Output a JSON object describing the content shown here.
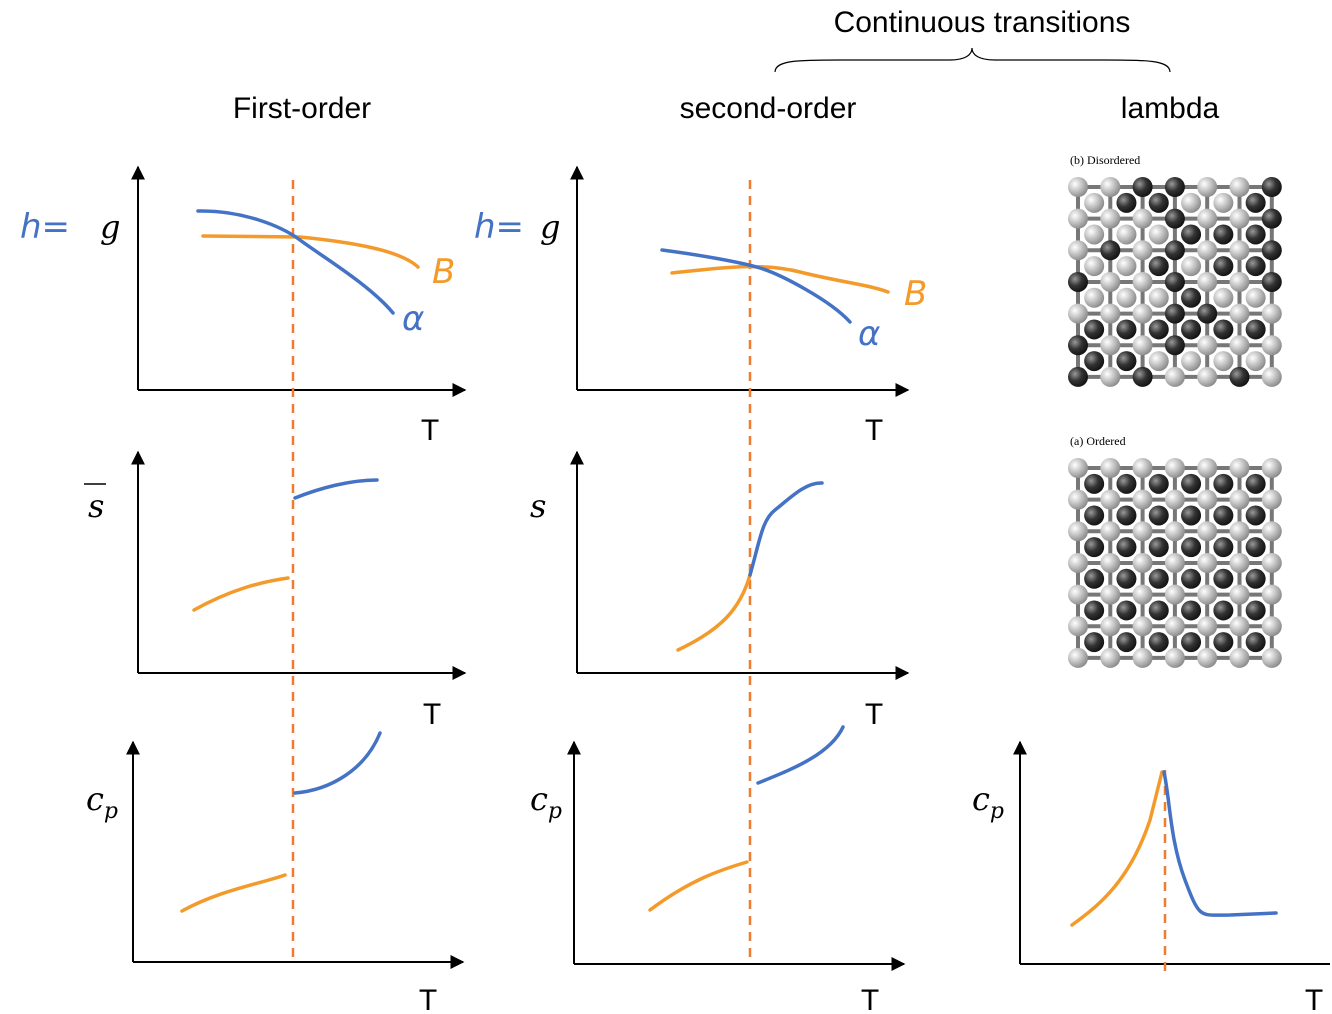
{
  "header": {
    "title": "Continuous transitions"
  },
  "columns": [
    {
      "title": "First-order",
      "g_plot": {
        "annotation": "h=",
        "y_label": "g",
        "x_label": "T",
        "curve_labels": [
          "B",
          "α"
        ]
      },
      "s_plot": {
        "y_label": "s",
        "x_label": "T"
      },
      "cp_plot": {
        "y_label": "c",
        "y_sub": "p",
        "x_label": "T"
      }
    },
    {
      "title": "second-order",
      "g_plot": {
        "annotation": "h=",
        "y_label": "g",
        "x_label": "T",
        "curve_labels": [
          "B",
          "α"
        ]
      },
      "s_plot": {
        "y_label": "s",
        "x_label": "T"
      },
      "cp_plot": {
        "y_label": "c",
        "y_sub": "p",
        "x_label": "T"
      }
    },
    {
      "title": "lambda",
      "lattices": [
        "(b) Disordered",
        "(a) Ordered"
      ],
      "cp_plot": {
        "y_label": "c",
        "y_sub": "p",
        "x_label": "T"
      }
    }
  ]
}
